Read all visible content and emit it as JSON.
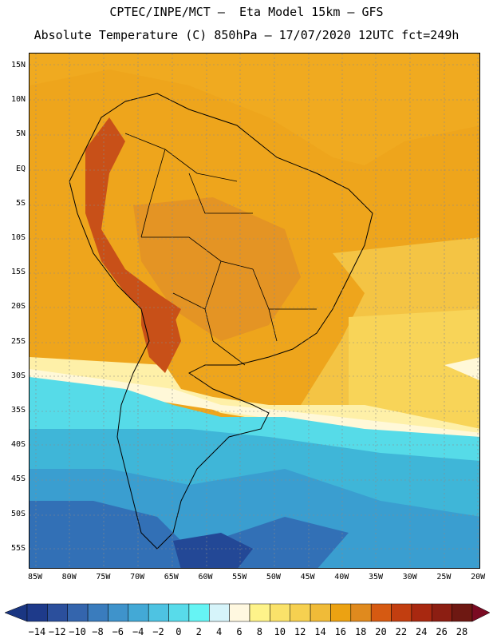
{
  "header": {
    "line1": "CPTEC/INPE/MCT –  Eta Model 15km – GFS",
    "line2": "Absolute Temperature (C) 850hPa – 17/07/2020 12UTC fct=249h"
  },
  "map": {
    "lat_labels": [
      "15N",
      "10N",
      "5N",
      "EQ",
      "5S",
      "10S",
      "15S",
      "20S",
      "25S",
      "30S",
      "35S",
      "40S",
      "45S",
      "50S",
      "55S"
    ],
    "lon_labels": [
      "85W",
      "80W",
      "75W",
      "70W",
      "65W",
      "60W",
      "55W",
      "50W",
      "45W",
      "40W",
      "35W",
      "30W",
      "25W",
      "20W"
    ],
    "palette": {
      "t28": "#7a1a14",
      "t26": "#9a2410",
      "t24": "#b83810",
      "t22": "#d85012",
      "t20": "#e08820",
      "t18": "#eca212",
      "t16": "#f0b83a",
      "t14": "#f6d050",
      "t12": "#fad860",
      "t10": "#fee890",
      "t8": "#fff8d8",
      "t6": "#d6f4fa",
      "t4": "#66f4f4",
      "t2": "#56e6ea",
      "t0": "#48cde2",
      "tm2": "#3eb3d8",
      "tm4": "#3a9ed0",
      "tm6": "#3788c4",
      "tm8": "#3270b6",
      "tm10": "#2b5ca8",
      "tm12": "#234896",
      "tm14": "#1a3682"
    }
  },
  "colorbar": {
    "labels": [
      "−14",
      "−12",
      "−10",
      "−8",
      "−6",
      "−4",
      "−2",
      "0",
      "2",
      "4",
      "6",
      "8",
      "10",
      "12",
      "14",
      "16",
      "18",
      "20",
      "22",
      "24",
      "26",
      "28"
    ],
    "colors": [
      "#1e3a8a",
      "#2b4f9c",
      "#3465ad",
      "#3a7cbd",
      "#3f93cb",
      "#43a9d6",
      "#4ec3e2",
      "#58dbea",
      "#66f4f4",
      "#d6f4fa",
      "#fff8e0",
      "#fef38a",
      "#fae26a",
      "#f6d050",
      "#f0bb38",
      "#eca212",
      "#e08a1e",
      "#d65a12",
      "#c23e10",
      "#a82810",
      "#8c1e12",
      "#6e1812"
    ],
    "low_arrow": "#1a3682",
    "high_arrow": "#7a0a22"
  }
}
